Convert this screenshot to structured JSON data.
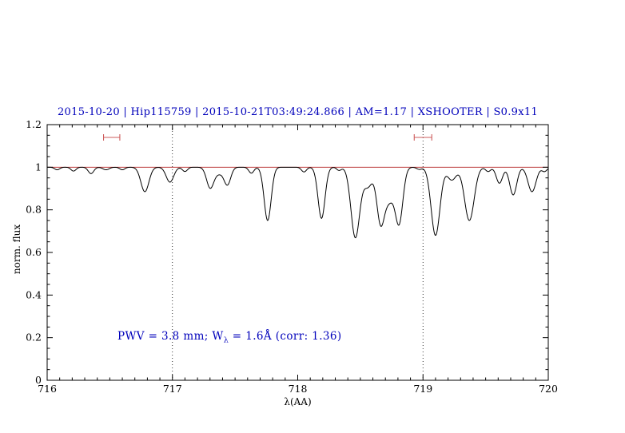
{
  "title": "2015-10-20 | Hip115759 | 2015-10-21T03:49:24.866 | AM=1.17 | XSHOOTER | S0.9x11",
  "annotation": {
    "part1": "PWV = 3.8 mm; W",
    "sub": "λ",
    "part2": " = 1.6Å (corr: 1.36)"
  },
  "colors": {
    "title_blue": "#0000bb",
    "annotation_blue": "#0000bb",
    "continuum_red": "#b22222",
    "marker_red": "#cd5c5c",
    "spectrum_black": "#000000",
    "guide_black": "#000000"
  },
  "chart_data": {
    "type": "line",
    "title": "2015-10-20 | Hip115759 | 2015-10-21T03:49:24.866 | AM=1.17 | XSHOOTER | S0.9x11",
    "xlabel": "λ(AA)",
    "ylabel": "norm. flux",
    "xlim": [
      716,
      720
    ],
    "ylim": [
      0,
      1.2
    ],
    "grid": false,
    "legend": "none",
    "x_major_ticks": [
      716,
      717,
      718,
      719,
      720
    ],
    "x_tick_labels": [
      "716",
      "717",
      "718",
      "719",
      "720"
    ],
    "x_minor_step": 0.1,
    "y_major_ticks": [
      0,
      0.2,
      0.4,
      0.6,
      0.8,
      1,
      1.2
    ],
    "y_tick_labels": [
      "0",
      "0.2",
      "0.4",
      "0.6",
      "0.8",
      "1",
      "1.2"
    ],
    "y_minor_step": 0.05,
    "dotted_guides_x": [
      717,
      719
    ],
    "continuum_y": 1.0,
    "range_markers": [
      {
        "x1": 716.45,
        "x2": 716.58,
        "y": 1.14
      },
      {
        "x1": 718.93,
        "x2": 719.07,
        "y": 1.14
      }
    ],
    "spectrum_model": {
      "continuum": 1.0,
      "absorption_lines": [
        {
          "center": 716.08,
          "depth": 0.012,
          "sigma": 0.02
        },
        {
          "center": 716.21,
          "depth": 0.018,
          "sigma": 0.02
        },
        {
          "center": 716.35,
          "depth": 0.03,
          "sigma": 0.022
        },
        {
          "center": 716.47,
          "depth": 0.012,
          "sigma": 0.025
        },
        {
          "center": 716.6,
          "depth": 0.012,
          "sigma": 0.02
        },
        {
          "center": 716.78,
          "depth": 0.115,
          "sigma": 0.032
        },
        {
          "center": 716.98,
          "depth": 0.07,
          "sigma": 0.03
        },
        {
          "center": 717.1,
          "depth": 0.02,
          "sigma": 0.02
        },
        {
          "center": 717.3,
          "depth": 0.09,
          "sigma": 0.028
        },
        {
          "center": 717.37,
          "depth": 0.03,
          "sigma": 0.045
        },
        {
          "center": 717.44,
          "depth": 0.075,
          "sigma": 0.026
        },
        {
          "center": 717.63,
          "depth": 0.028,
          "sigma": 0.02
        },
        {
          "center": 717.76,
          "depth": 0.25,
          "sigma": 0.028
        },
        {
          "center": 718.05,
          "depth": 0.022,
          "sigma": 0.02
        },
        {
          "center": 718.19,
          "depth": 0.24,
          "sigma": 0.028
        },
        {
          "center": 718.33,
          "depth": 0.015,
          "sigma": 0.018
        },
        {
          "center": 718.46,
          "depth": 0.33,
          "sigma": 0.035
        },
        {
          "center": 718.56,
          "depth": 0.09,
          "sigma": 0.035
        },
        {
          "center": 718.66,
          "depth": 0.24,
          "sigma": 0.03
        },
        {
          "center": 718.73,
          "depth": 0.15,
          "sigma": 0.04
        },
        {
          "center": 718.81,
          "depth": 0.25,
          "sigma": 0.03
        },
        {
          "center": 718.97,
          "depth": 0.01,
          "sigma": 0.02
        },
        {
          "center": 719.1,
          "depth": 0.32,
          "sigma": 0.035
        },
        {
          "center": 719.23,
          "depth": 0.06,
          "sigma": 0.035
        },
        {
          "center": 719.37,
          "depth": 0.25,
          "sigma": 0.038
        },
        {
          "center": 719.52,
          "depth": 0.02,
          "sigma": 0.02
        },
        {
          "center": 719.61,
          "depth": 0.075,
          "sigma": 0.025
        },
        {
          "center": 719.72,
          "depth": 0.13,
          "sigma": 0.028
        },
        {
          "center": 719.87,
          "depth": 0.115,
          "sigma": 0.032
        },
        {
          "center": 719.97,
          "depth": 0.02,
          "sigma": 0.02
        }
      ]
    }
  }
}
